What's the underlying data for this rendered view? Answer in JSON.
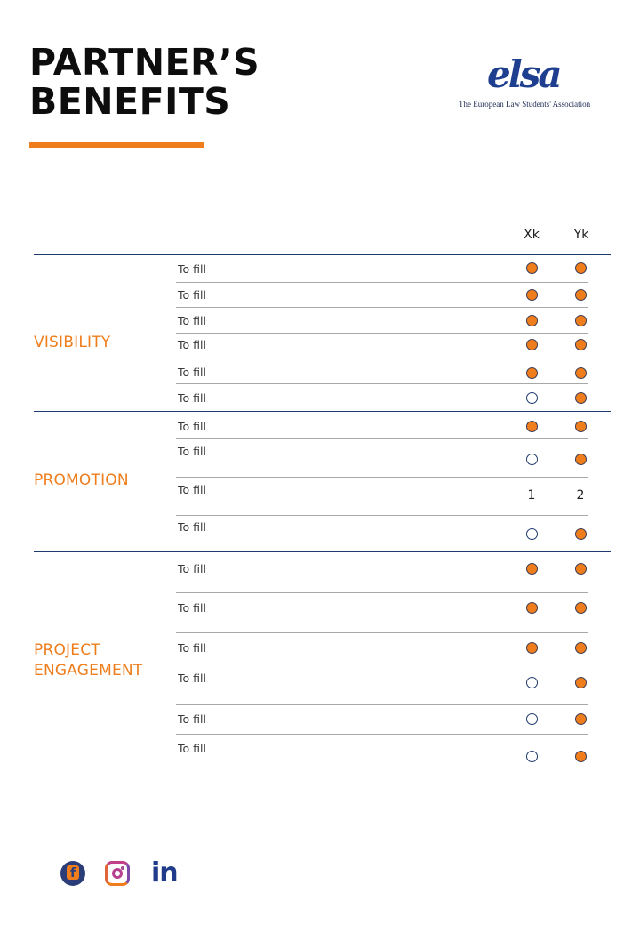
{
  "header": {
    "title_line1": "PARTNER’S",
    "title_line2": "BENEFITS",
    "accent_color": "#ef7d1c"
  },
  "logo": {
    "mark": "elsa",
    "tagline": "The European Law Students' Association",
    "color": "#1e3f8f"
  },
  "table": {
    "columns": [
      "Xk",
      "Yk"
    ],
    "sections": [
      {
        "name": "VISIBILITY",
        "rows": [
          {
            "label": "To fill",
            "xk": "filled",
            "yk": "filled"
          },
          {
            "label": "To fill",
            "xk": "filled",
            "yk": "filled"
          },
          {
            "label": "To fill",
            "xk": "filled",
            "yk": "filled"
          },
          {
            "label": "To fill",
            "xk": "filled",
            "yk": "filled"
          },
          {
            "label": "To fill",
            "xk": "filled",
            "yk": "filled"
          },
          {
            "label": "To fill",
            "xk": "empty",
            "yk": "filled"
          }
        ]
      },
      {
        "name": "PROMOTION",
        "rows": [
          {
            "label": "To fill",
            "xk": "filled",
            "yk": "filled"
          },
          {
            "label": "To fill",
            "xk": "empty",
            "yk": "filled"
          },
          {
            "label": "To fill",
            "xk": "1",
            "yk": "2"
          },
          {
            "label": "To fill",
            "xk": "empty",
            "yk": "filled"
          }
        ]
      },
      {
        "name_line1": "PROJECT",
        "name_line2": "ENGAGEMENT",
        "rows": [
          {
            "label": "To fill",
            "xk": "filled",
            "yk": "filled"
          },
          {
            "label": "To fill",
            "xk": "filled",
            "yk": "filled"
          },
          {
            "label": "To fill",
            "xk": "filled",
            "yk": "filled"
          },
          {
            "label": "To fill",
            "xk": "empty",
            "yk": "filled"
          },
          {
            "label": "To fill",
            "xk": "empty",
            "yk": "filled"
          },
          {
            "label": "To fill",
            "xk": "empty",
            "yk": "filled"
          }
        ]
      }
    ]
  },
  "social": {
    "icons": [
      "facebook-icon",
      "instagram-icon",
      "linkedin-icon"
    ],
    "linkedin_text": "in"
  }
}
